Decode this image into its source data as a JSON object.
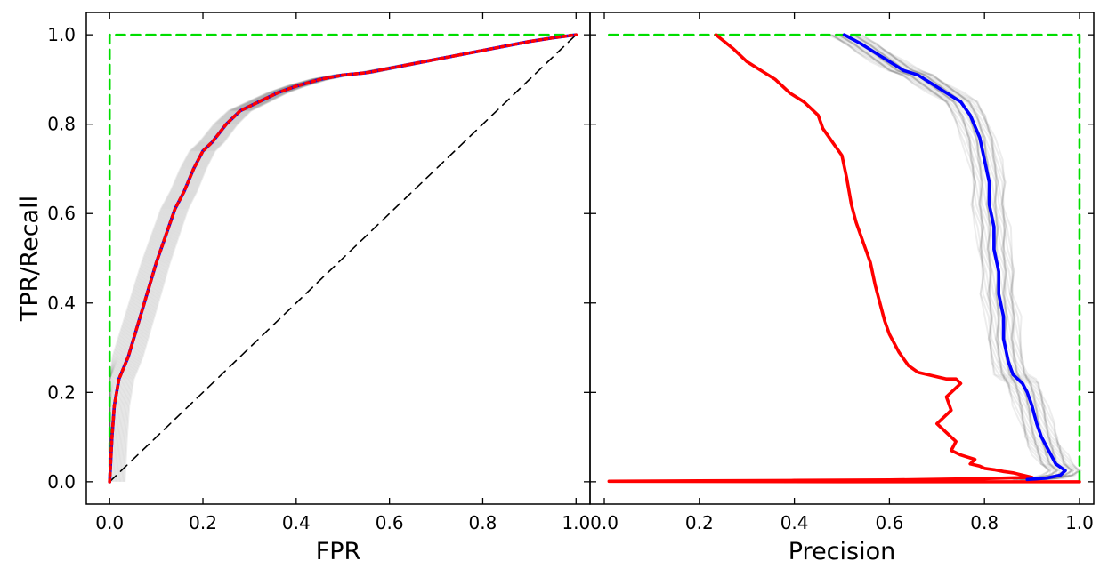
{
  "chart_data": [
    {
      "type": "line",
      "xlabel": "FPR",
      "ylabel": "TPR/Recall",
      "xlim": [
        -0.05,
        1.03
      ],
      "ylim": [
        -0.05,
        1.05
      ],
      "xticks": [
        "0.0",
        "0.2",
        "0.4",
        "0.6",
        "0.8",
        "1.0"
      ],
      "yticks": [
        "0.0",
        "0.2",
        "0.4",
        "0.6",
        "0.8",
        "1.0"
      ],
      "grid": false,
      "legend": "none",
      "series": [
        {
          "style": "perfect-classifier",
          "color": "#00dd00",
          "dash": "dashed",
          "x": [
            0,
            0,
            1
          ],
          "y": [
            0,
            1,
            1
          ]
        },
        {
          "style": "random-baseline",
          "color": "#000000",
          "dash": "dashed",
          "x": [
            0,
            1
          ],
          "y": [
            0,
            1
          ]
        },
        {
          "style": "mean-roc",
          "color": "#0000ff",
          "dash": "solid",
          "x": [
            0,
            0.005,
            0.01,
            0.02,
            0.04,
            0.06,
            0.08,
            0.1,
            0.12,
            0.14,
            0.16,
            0.18,
            0.2,
            0.22,
            0.25,
            0.28,
            0.32,
            0.36,
            0.4,
            0.45,
            0.5,
            0.55,
            0.6,
            0.65,
            0.7,
            0.75,
            0.8,
            0.85,
            0.9,
            0.95,
            1.0
          ],
          "y": [
            0,
            0.1,
            0.17,
            0.23,
            0.28,
            0.35,
            0.42,
            0.49,
            0.55,
            0.61,
            0.65,
            0.7,
            0.74,
            0.76,
            0.8,
            0.83,
            0.85,
            0.87,
            0.885,
            0.9,
            0.91,
            0.915,
            0.925,
            0.935,
            0.945,
            0.955,
            0.965,
            0.975,
            0.985,
            0.993,
            1.0
          ]
        },
        {
          "style": "mean-roc-overlay",
          "color": "#ff0000",
          "dash": "dotted",
          "x": [
            0,
            0.005,
            0.01,
            0.02,
            0.04,
            0.06,
            0.08,
            0.1,
            0.12,
            0.14,
            0.16,
            0.18,
            0.2,
            0.22,
            0.25,
            0.28,
            0.32,
            0.36,
            0.4,
            0.45,
            0.5,
            0.55,
            0.6,
            0.65,
            0.7,
            0.75,
            0.8,
            0.85,
            0.9,
            0.95,
            1.0
          ],
          "y": [
            0,
            0.1,
            0.17,
            0.23,
            0.28,
            0.35,
            0.42,
            0.49,
            0.55,
            0.61,
            0.65,
            0.7,
            0.74,
            0.76,
            0.8,
            0.83,
            0.85,
            0.87,
            0.885,
            0.9,
            0.91,
            0.915,
            0.925,
            0.935,
            0.945,
            0.955,
            0.965,
            0.975,
            0.985,
            0.993,
            1.0
          ]
        }
      ]
    },
    {
      "type": "line",
      "xlabel": "Precision",
      "ylabel": "",
      "xlim": [
        -0.03,
        1.03
      ],
      "ylim": [
        -0.05,
        1.05
      ],
      "xticks": [
        "0.0",
        "0.2",
        "0.4",
        "0.6",
        "0.8",
        "1.0"
      ],
      "grid": false,
      "legend": "none",
      "series": [
        {
          "style": "perfect-classifier",
          "color": "#00dd00",
          "dash": "dashed",
          "x": [
            0.01,
            1.0,
            1.0
          ],
          "y": [
            1,
            1,
            0
          ]
        },
        {
          "style": "red-pr-curve",
          "color": "#ff0000",
          "dash": "solid",
          "x": [
            0.235,
            0.27,
            0.3,
            0.33,
            0.36,
            0.39,
            0.42,
            0.45,
            0.46,
            0.48,
            0.5,
            0.51,
            0.52,
            0.53,
            0.54,
            0.55,
            0.56,
            0.57,
            0.58,
            0.59,
            0.6,
            0.61,
            0.62,
            0.64,
            0.66,
            0.68,
            0.7,
            0.72,
            0.74,
            0.75,
            0.72,
            0.73,
            0.7,
            0.72,
            0.74,
            0.73,
            0.75,
            0.78,
            0.77,
            0.79,
            0.8,
            0.82,
            0.84,
            0.86,
            0.88,
            0.9,
            0.8,
            0.6,
            0.4,
            0.2,
            0.01,
            0.5,
            1.0
          ],
          "y": [
            1.0,
            0.97,
            0.94,
            0.92,
            0.9,
            0.87,
            0.85,
            0.82,
            0.79,
            0.76,
            0.73,
            0.68,
            0.62,
            0.58,
            0.55,
            0.52,
            0.49,
            0.44,
            0.4,
            0.36,
            0.33,
            0.31,
            0.29,
            0.26,
            0.245,
            0.24,
            0.235,
            0.23,
            0.23,
            0.22,
            0.19,
            0.16,
            0.13,
            0.11,
            0.09,
            0.07,
            0.06,
            0.05,
            0.04,
            0.035,
            0.03,
            0.027,
            0.023,
            0.02,
            0.015,
            0.01,
            0.007,
            0.004,
            0.003,
            0.002,
            0.001,
            0.0,
            0.0
          ]
        },
        {
          "style": "blue-pr-curve",
          "color": "#0000ff",
          "dash": "solid",
          "x": [
            0.505,
            0.54,
            0.57,
            0.6,
            0.63,
            0.66,
            0.69,
            0.72,
            0.75,
            0.77,
            0.79,
            0.8,
            0.81,
            0.81,
            0.82,
            0.82,
            0.83,
            0.83,
            0.84,
            0.84,
            0.85,
            0.86,
            0.87,
            0.88,
            0.89,
            0.9,
            0.91,
            0.92,
            0.93,
            0.94,
            0.95,
            0.97,
            0.96,
            0.93,
            0.89
          ],
          "y": [
            1.0,
            0.98,
            0.96,
            0.94,
            0.92,
            0.91,
            0.89,
            0.87,
            0.85,
            0.82,
            0.77,
            0.72,
            0.67,
            0.62,
            0.57,
            0.52,
            0.47,
            0.42,
            0.37,
            0.32,
            0.27,
            0.24,
            0.23,
            0.22,
            0.2,
            0.17,
            0.13,
            0.1,
            0.08,
            0.06,
            0.04,
            0.025,
            0.015,
            0.008,
            0.005
          ]
        }
      ]
    }
  ]
}
